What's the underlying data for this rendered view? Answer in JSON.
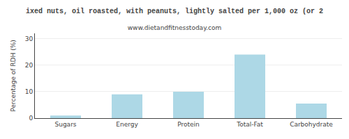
{
  "chart_data": {
    "type": "bar",
    "title": "ixed nuts, oil roasted, with peanuts, lightly salted per 1,000 oz (or 2",
    "subtitle": "www.dietandfitnesstoday.com",
    "categories": [
      "Sugars",
      "Energy",
      "Protein",
      "Total-Fat",
      "Carbohydrate"
    ],
    "values": [
      1.0,
      9.0,
      10.0,
      24.0,
      5.5
    ],
    "color": "#add8e6",
    "ylabel": "Percentage of RDH (%)",
    "ylim": [
      0,
      32
    ],
    "yticks": [
      0,
      10,
      20,
      30
    ],
    "grid": true
  }
}
